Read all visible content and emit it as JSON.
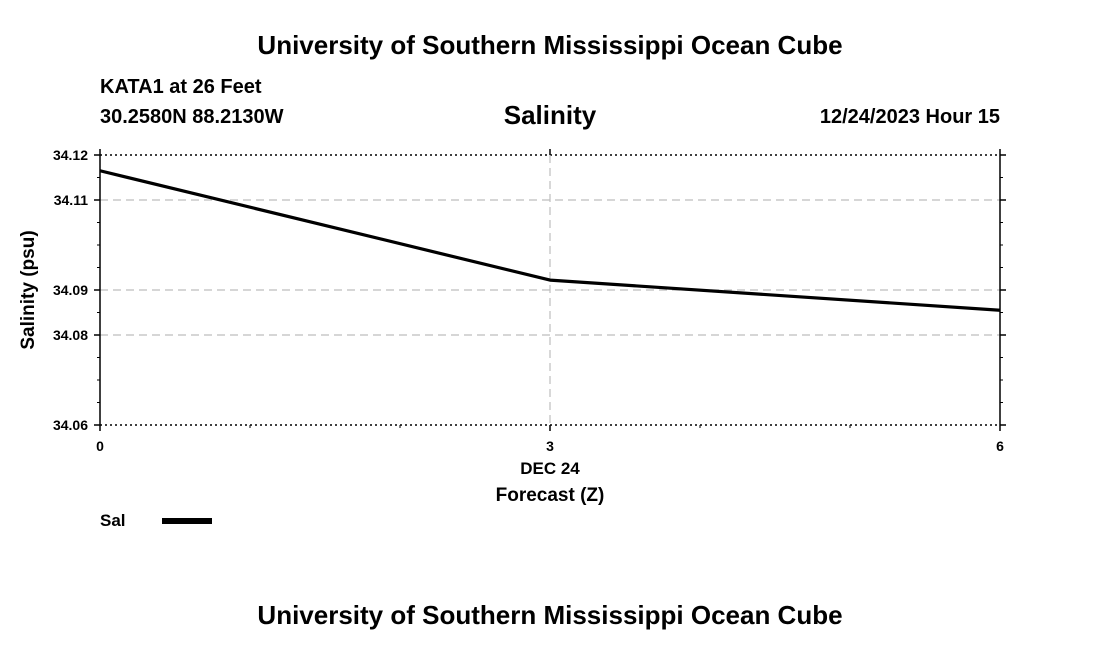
{
  "header": {
    "title": "University of Southern Mississippi Ocean Cube",
    "station": "KATA1 at 26 Feet",
    "coordinates": "30.2580N  88.2130W",
    "chart_title": "Salinity",
    "datetime": "12/24/2023 Hour 15"
  },
  "footer": {
    "title": "University of Southern Mississippi Ocean Cube"
  },
  "chart_data": {
    "type": "line",
    "title": "Salinity",
    "xlabel": "Forecast (Z)",
    "ylabel": "Salinity (psu)",
    "x_ticks": [
      "0",
      "3",
      "6"
    ],
    "x_sublabel": "DEC 24",
    "xlim": [
      0,
      6
    ],
    "y_ticks": [
      "34.06",
      "34.08",
      "34.09",
      "34.11",
      "34.12"
    ],
    "ylim": [
      34.06,
      34.12
    ],
    "grid": true,
    "series": [
      {
        "name": "Sal",
        "color": "#000000",
        "x": [
          0,
          3,
          6
        ],
        "y": [
          34.1165,
          34.0922,
          34.0855
        ]
      }
    ],
    "legend": {
      "position": "bottom-left",
      "entries": [
        "Sal"
      ]
    }
  }
}
